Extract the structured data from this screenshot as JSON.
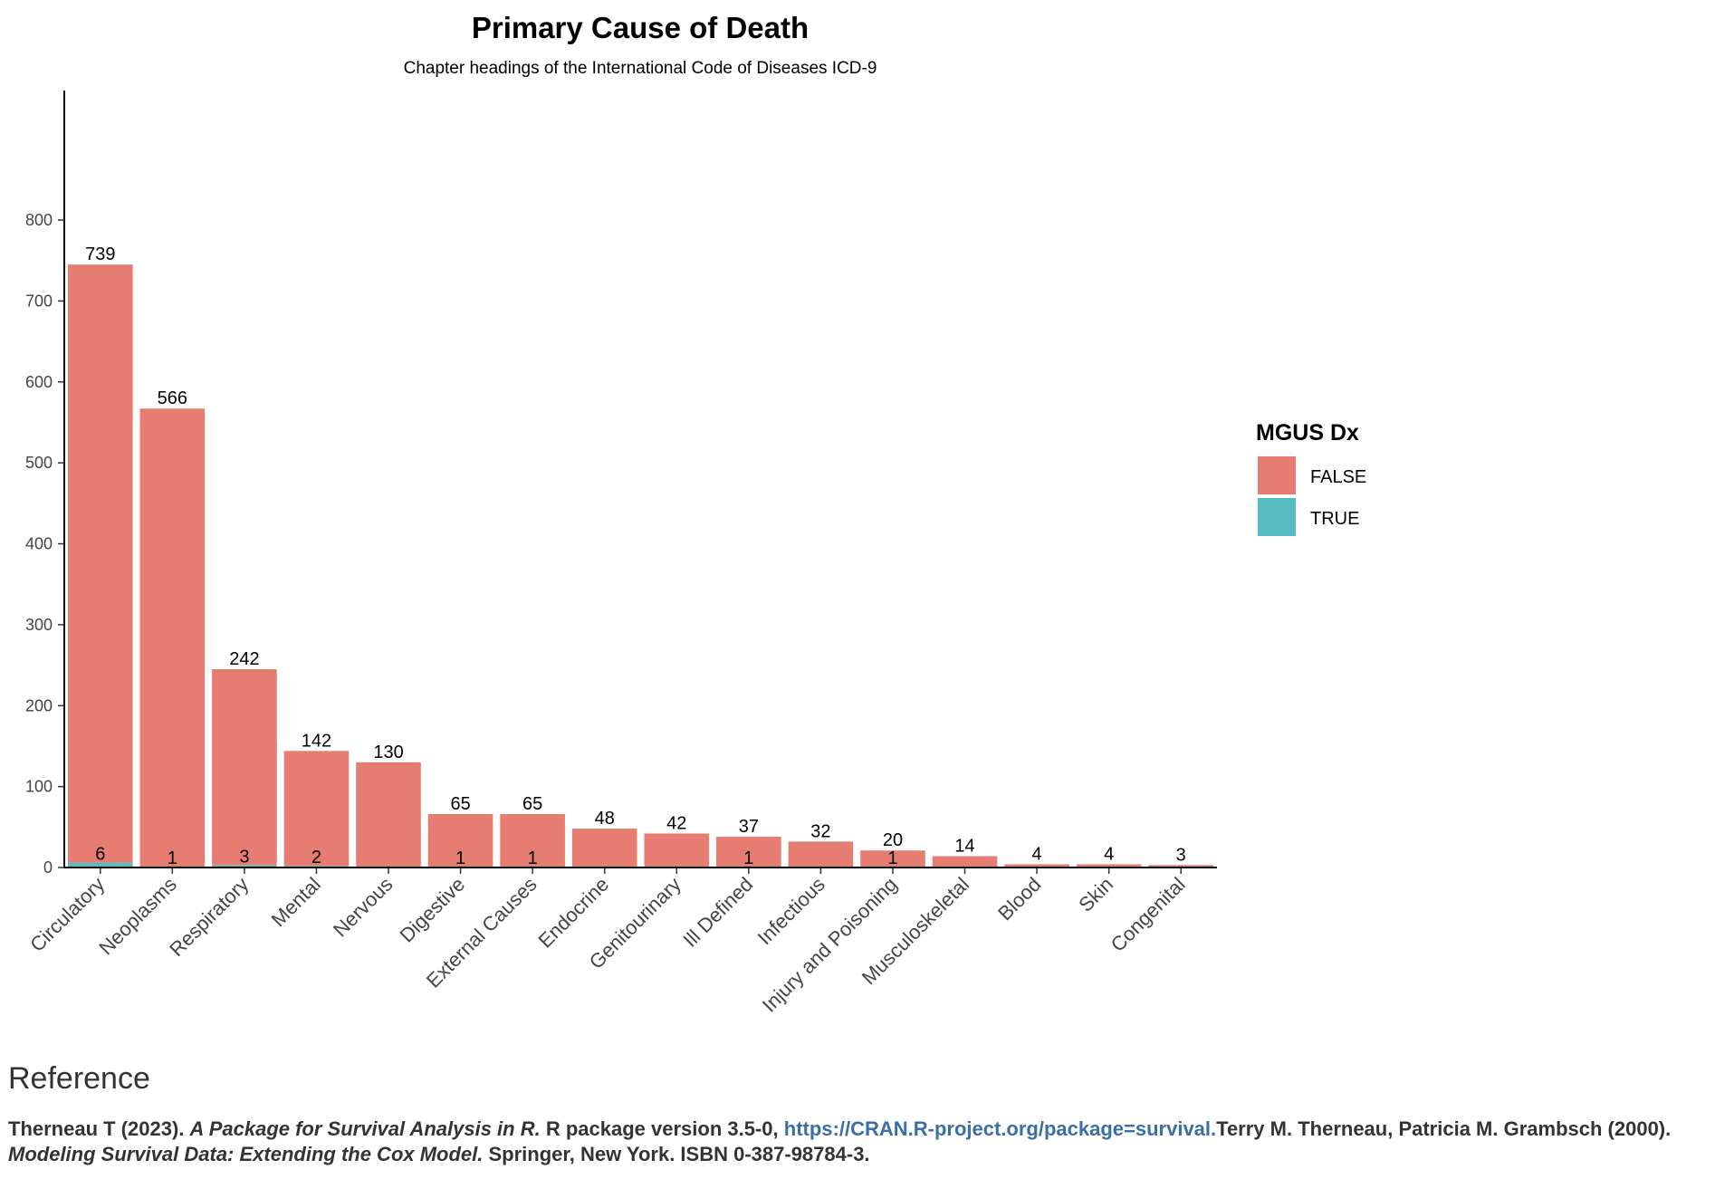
{
  "chart_data": {
    "type": "bar",
    "stacked": true,
    "title": "Primary Cause of Death",
    "subtitle": "Chapter headings of the International Code of Diseases ICD-9",
    "xlabel": "",
    "ylabel": "",
    "ylim": [
      0,
      960
    ],
    "yticks": [
      0,
      100,
      200,
      300,
      400,
      500,
      600,
      700,
      800
    ],
    "grid": false,
    "legend": {
      "title": "MGUS Dx",
      "placement": "right"
    },
    "categories": [
      "Circulatory",
      "Neoplasms",
      "Respiratory",
      "Mental",
      "Nervous",
      "Digestive",
      "External Causes",
      "Endocrine",
      "Genitourinary",
      "Ill Defined",
      "Infectious",
      "Injury and Poisoning",
      "Musculoskeletal",
      "Blood",
      "Skin",
      "Congenital"
    ],
    "series": [
      {
        "name": "TRUE",
        "color": "#56bcc2",
        "values": [
          6,
          1,
          3,
          2,
          0,
          1,
          1,
          0,
          0,
          1,
          0,
          1,
          0,
          0,
          0,
          0
        ]
      },
      {
        "name": "FALSE",
        "color": "#e77c72",
        "values": [
          739,
          566,
          242,
          142,
          130,
          65,
          65,
          48,
          42,
          37,
          32,
          20,
          14,
          4,
          4,
          3
        ]
      }
    ]
  },
  "reference": {
    "heading": "Reference",
    "line1_part1": "Therneau T (2023). ",
    "line1_title": "A Package for Survival Analysis in R.",
    "line1_part2": " R package version 3.5-0, ",
    "link_text": "https://CRAN.R-project.org/package=survival.",
    "line2_part1": "Terry M. Therneau, Patricia M. Grambsch (2000). ",
    "line2_title": "Modeling Survival Data: Extending the Cox Model.",
    "line2_part2": " Springer, New York. ISBN 0-387-98784-3."
  }
}
